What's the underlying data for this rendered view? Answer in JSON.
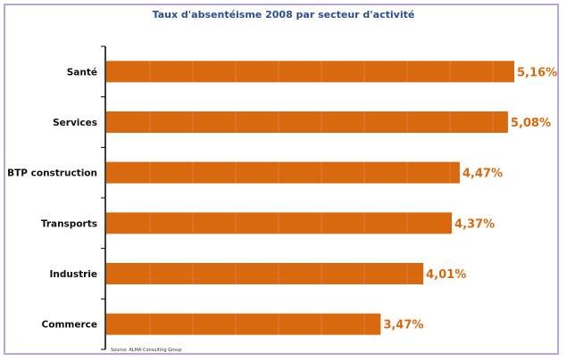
{
  "chart_data": {
    "type": "bar",
    "orientation": "horizontal",
    "title": "Taux d'absentéisme 2008 par secteur d'activité",
    "categories": [
      "Santé",
      "Services",
      "BTP construction",
      "Transports",
      "Industrie",
      "Commerce"
    ],
    "values": [
      5.16,
      5.08,
      4.47,
      4.37,
      4.01,
      3.47
    ],
    "value_labels": [
      "5,16%",
      "5,08%",
      "4,47%",
      "4,37%",
      "4,01%",
      "3,47%"
    ],
    "xlabel": "",
    "ylabel": "",
    "xlim": [
      0,
      5.16
    ],
    "grid": false,
    "legend": "none",
    "source": "Source: ALMA Consulting Group",
    "colors": {
      "bar": "#d9690f",
      "label": "#d9690f",
      "title": "#2b4f8a",
      "frame": "#b9a6d8"
    }
  }
}
